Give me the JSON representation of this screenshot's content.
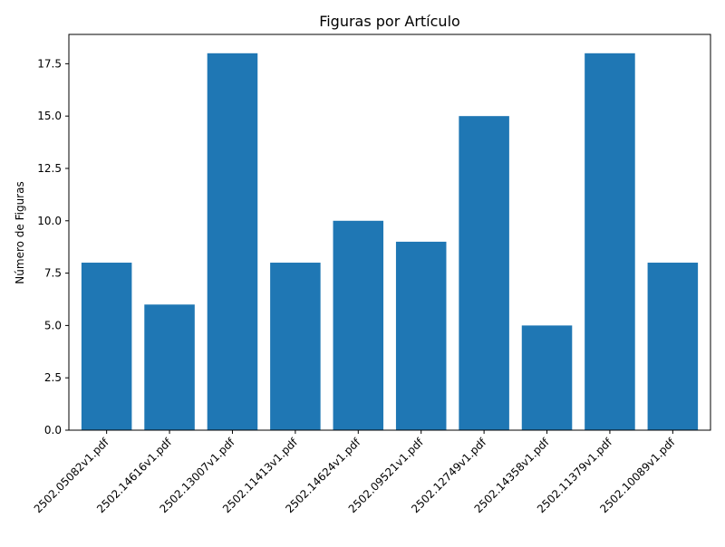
{
  "chart_data": {
    "type": "bar",
    "title": "Figuras por Artículo",
    "xlabel": "",
    "ylabel": "Número de Figuras",
    "categories": [
      "2502.05082v1.pdf",
      "2502.14616v1.pdf",
      "2502.13007v1.pdf",
      "2502.11413v1.pdf",
      "2502.14624v1.pdf",
      "2502.09521v1.pdf",
      "2502.12749v1.pdf",
      "2502.14358v1.pdf",
      "2502.11379v1.pdf",
      "2502.10089v1.pdf"
    ],
    "values": [
      8,
      6,
      18,
      8,
      10,
      9,
      15,
      5,
      18,
      8
    ],
    "ylim": [
      0,
      18.9
    ],
    "yticks": [
      0.0,
      2.5,
      5.0,
      7.5,
      10.0,
      12.5,
      15.0,
      17.5
    ],
    "ytick_labels": [
      "0.0",
      "2.5",
      "5.0",
      "7.5",
      "10.0",
      "12.5",
      "15.0",
      "17.5"
    ],
    "grid": false,
    "bar_color": "#1f77b4"
  }
}
